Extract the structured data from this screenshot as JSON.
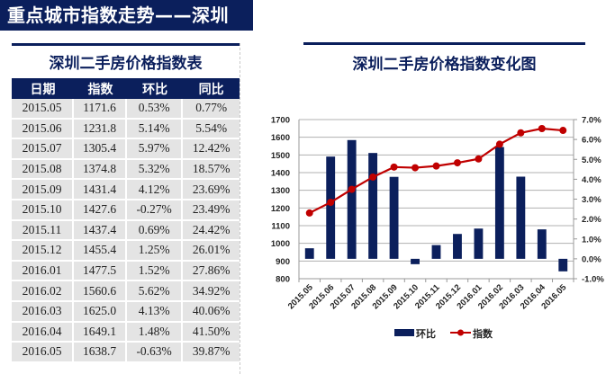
{
  "banner": {
    "title": "重点城市指数走势——深圳"
  },
  "table": {
    "title": "深圳二手房价格指数表",
    "headers": [
      "日期",
      "指数",
      "环比",
      "同比"
    ],
    "rows": [
      [
        "2015.05",
        "1171.6",
        "0.53%",
        "0.77%"
      ],
      [
        "2015.06",
        "1231.8",
        "5.14%",
        "5.54%"
      ],
      [
        "2015.07",
        "1305.4",
        "5.97%",
        "12.42%"
      ],
      [
        "2015.08",
        "1374.8",
        "5.32%",
        "18.57%"
      ],
      [
        "2015.09",
        "1431.4",
        "4.12%",
        "23.69%"
      ],
      [
        "2015.10",
        "1427.6",
        "-0.27%",
        "23.49%"
      ],
      [
        "2015.11",
        "1437.4",
        "0.69%",
        "24.42%"
      ],
      [
        "2015.12",
        "1455.4",
        "1.25%",
        "26.01%"
      ],
      [
        "2016.01",
        "1477.5",
        "1.52%",
        "27.86%"
      ],
      [
        "2016.02",
        "1560.6",
        "5.62%",
        "34.92%"
      ],
      [
        "2016.03",
        "1625.0",
        "4.13%",
        "40.06%"
      ],
      [
        "2016.04",
        "1649.1",
        "1.48%",
        "41.50%"
      ],
      [
        "2016.05",
        "1638.7",
        "-0.63%",
        "39.87%"
      ]
    ]
  },
  "colors": {
    "navy": "#0b1f5c",
    "red": "#c00000",
    "cell": "#e4e4e4"
  },
  "chart_data": {
    "type": "bar+line",
    "title": "深圳二手房价格指数变化图",
    "categories": [
      "2015.05",
      "2015.06",
      "2015.07",
      "2015.08",
      "2015.09",
      "2015.10",
      "2015.11",
      "2015.12",
      "2016.01",
      "2016.02",
      "2016.03",
      "2016.04",
      "2016.05"
    ],
    "series": [
      {
        "name": "环比",
        "type": "bar",
        "axis": "right",
        "unit": "%",
        "values": [
          0.53,
          5.14,
          5.97,
          5.32,
          4.12,
          -0.27,
          0.69,
          1.25,
          1.52,
          5.62,
          4.13,
          1.48,
          -0.63
        ]
      },
      {
        "name": "指数",
        "type": "line",
        "axis": "left",
        "values": [
          1171.6,
          1231.8,
          1305.4,
          1374.8,
          1431.4,
          1427.6,
          1437.4,
          1455.4,
          1477.5,
          1560.6,
          1625.0,
          1649.1,
          1638.7
        ]
      }
    ],
    "y_left": {
      "range": [
        800,
        1700
      ],
      "ticks": [
        "1700",
        "1600",
        "1500",
        "1400",
        "1300",
        "1200",
        "1100",
        "1000",
        "900",
        "800"
      ]
    },
    "y_right": {
      "range": [
        -1.0,
        7.0
      ],
      "ticks": [
        "7.0%",
        "6.0%",
        "5.0%",
        "4.0%",
        "3.0%",
        "2.0%",
        "1.0%",
        "0.0%",
        "-1.0%"
      ]
    },
    "grid": true,
    "legend": {
      "position": "bottom",
      "entries": [
        "环比",
        "指数"
      ]
    }
  }
}
